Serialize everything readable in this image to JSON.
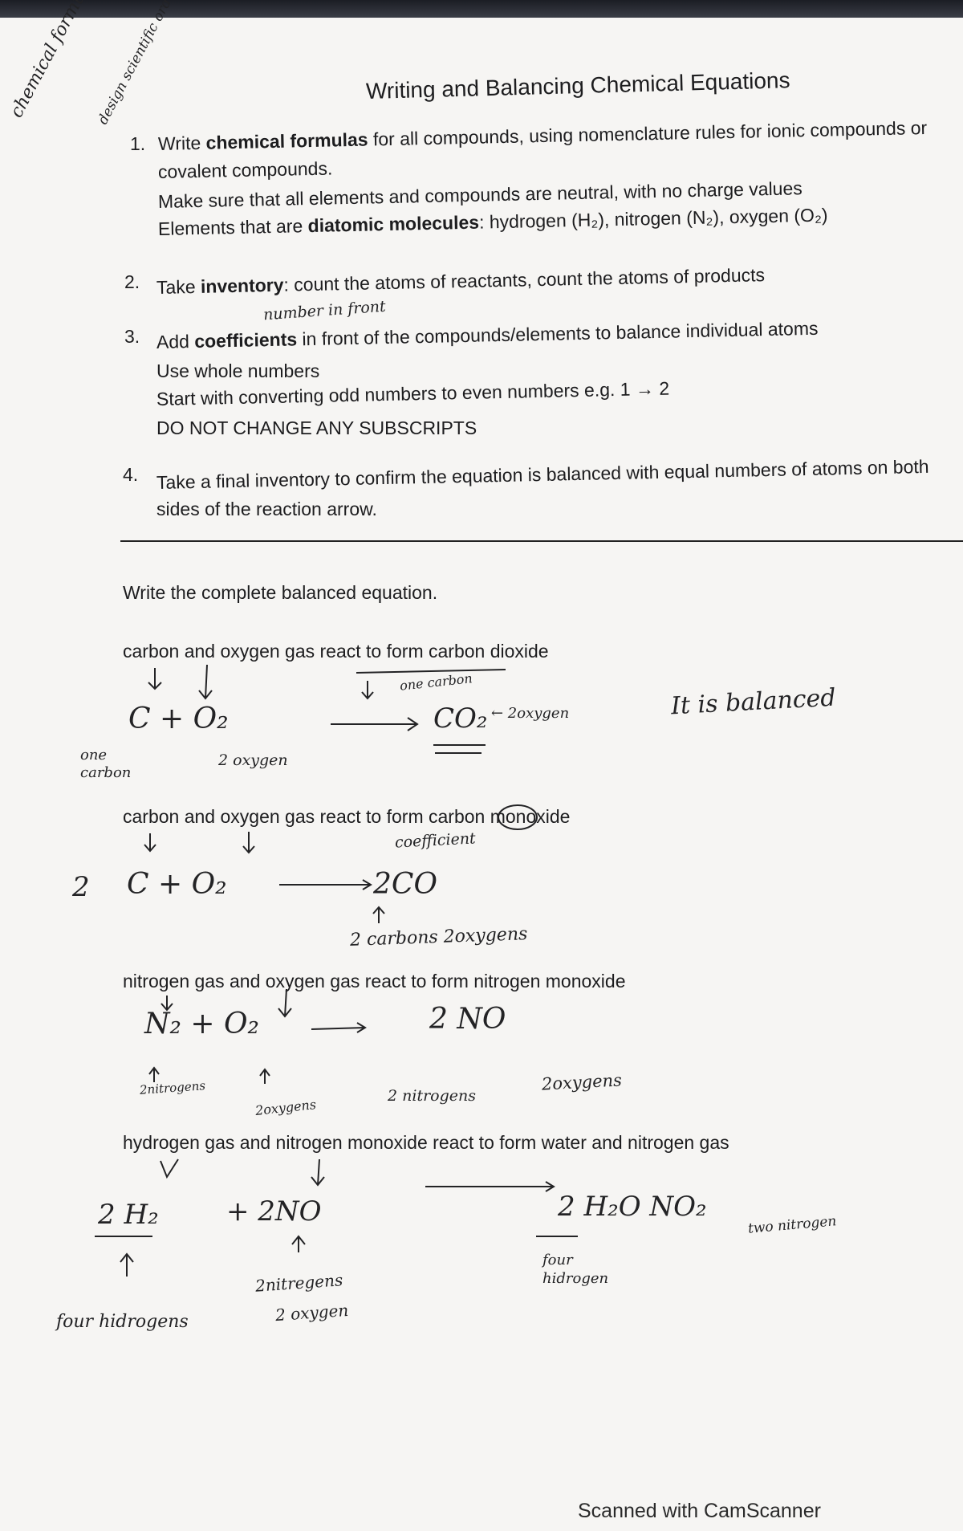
{
  "title": "Writing and Balancing Chemical Equations",
  "steps": [
    {
      "number": "1.",
      "lines": [
        [
          "Write ",
          "chemical formulas",
          " for all compounds, using nomenclature rules for ionic compounds or"
        ],
        [
          "covalent compounds."
        ],
        [
          "Make sure that all elements and compounds are neutral, with no charge values"
        ],
        [
          "Elements that are ",
          "diatomic molecules",
          ": hydrogen (H₂), nitrogen (N₂), oxygen (O₂)"
        ]
      ]
    },
    {
      "number": "2.",
      "lines": [
        [
          "Take ",
          "inventory",
          ": count the atoms of reactants, count the atoms of products"
        ]
      ]
    },
    {
      "number": "3.",
      "lines": [
        [
          "Add ",
          "coefficients",
          " in front of the compounds/elements to balance individual atoms"
        ],
        [
          "Use whole numbers"
        ],
        [
          "Start with converting odd numbers to even numbers e.g. 1 → 2"
        ],
        [
          "DO NOT CHANGE ANY SUBSCRIPTS"
        ]
      ]
    },
    {
      "number": "4.",
      "lines": [
        [
          "Take a final inventory to confirm the equation is balanced with equal numbers of atoms on both"
        ],
        [
          "sides of the reaction arrow."
        ]
      ]
    }
  ],
  "margin_notes": [
    "chemical formula writing",
    "design scientific order"
  ],
  "step_notes": [
    "number in front"
  ],
  "instruction": "Write the complete balanced equation.",
  "problems": [
    {
      "prompt": "carbon and oxygen gas react to form carbon dioxide",
      "work": [
        "C + O₂",
        "CO₂",
        "← 2oxygen",
        "one carbon",
        "one carbon",
        "2 oxygen",
        "It is balanced"
      ]
    },
    {
      "prompt": "carbon and oxygen gas react to form carbon monoxide",
      "work": [
        "2",
        "C + O₂",
        "2CO",
        "coefficient",
        "2 carbons 2oxygens"
      ]
    },
    {
      "prompt": "nitrogen gas and oxygen gas react to form nitrogen monoxide",
      "work": [
        "N₂ + O₂",
        "2 NO",
        "2nitrogens",
        "2oxygens",
        "2 nitrogens",
        "2oxygens"
      ]
    },
    {
      "prompt": "hydrogen gas and nitrogen monoxide react to form water and nitrogen gas",
      "work": [
        "2 H₂",
        "+ 2NO",
        "2 H₂O NO₂",
        "four hidrogens",
        "2nitregens",
        "2 oxygen",
        "four hidrogen",
        "two nitrogen"
      ]
    }
  ],
  "footer": "Scanned with CamScanner"
}
